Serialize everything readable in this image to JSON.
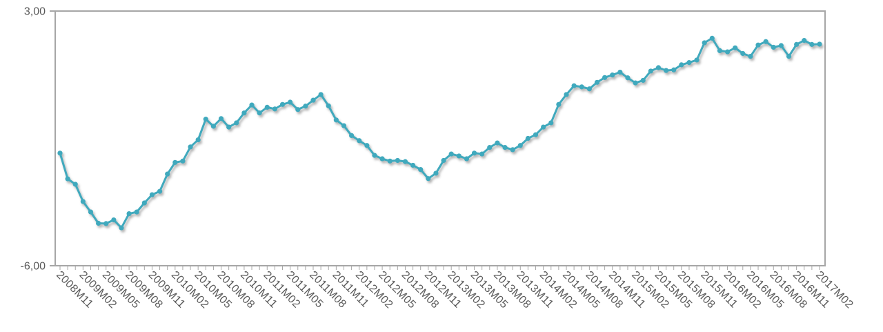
{
  "chart_data": {
    "type": "line",
    "title": "",
    "xlabel": "",
    "ylabel": "",
    "ylim": [
      -6,
      3
    ],
    "grid": "off",
    "legend": "none",
    "marker": "circle",
    "series_name": "monthly-trend",
    "colors": {
      "series": "#3FA9BD",
      "reference_line": "#404040",
      "axis": "#A6A6A6",
      "tick_text": "#595959",
      "background": "#FFFFFF",
      "shadow": "rgba(90,90,90,0.45)"
    },
    "y_ticks": [
      {
        "value": 3,
        "label": "3,00"
      },
      {
        "value": -6,
        "label": "-6,00"
      }
    ],
    "reference_line": {
      "value": 0
    },
    "x_tick_label_every": 3,
    "x_tick_labels": [
      "2008M11",
      "2009M02",
      "2009M05",
      "2009M08",
      "2009M11",
      "2010M02",
      "2010M05",
      "2010M08",
      "2010M11",
      "2011M02",
      "2011M05",
      "2011M08",
      "2011M11",
      "2012M02",
      "2012M05",
      "2012M08",
      "2012M11",
      "2013M02",
      "2013M05",
      "2013M08",
      "2013M11",
      "2014M02",
      "2014M05",
      "2014M08",
      "2014M11",
      "2015M02",
      "2015M05",
      "2015M08",
      "2015M11",
      "2016M02",
      "2016M05",
      "2016M08",
      "2016M11",
      "2017M02"
    ],
    "x": [
      "2008M11",
      "2008M12",
      "2009M01",
      "2009M02",
      "2009M03",
      "2009M04",
      "2009M05",
      "2009M06",
      "2009M07",
      "2009M08",
      "2009M09",
      "2009M10",
      "2009M11",
      "2009M12",
      "2010M01",
      "2010M02",
      "2010M03",
      "2010M04",
      "2010M05",
      "2010M06",
      "2010M07",
      "2010M08",
      "2010M09",
      "2010M10",
      "2010M11",
      "2010M12",
      "2011M01",
      "2011M02",
      "2011M03",
      "2011M04",
      "2011M05",
      "2011M06",
      "2011M07",
      "2011M08",
      "2011M09",
      "2011M10",
      "2011M11",
      "2011M12",
      "2012M01",
      "2012M02",
      "2012M03",
      "2012M04",
      "2012M05",
      "2012M06",
      "2012M07",
      "2012M08",
      "2012M09",
      "2012M10",
      "2012M11",
      "2012M12",
      "2013M01",
      "2013M02",
      "2013M03",
      "2013M04",
      "2013M05",
      "2013M06",
      "2013M07",
      "2013M08",
      "2013M09",
      "2013M10",
      "2013M11",
      "2013M12",
      "2014M01",
      "2014M02",
      "2014M03",
      "2014M04",
      "2014M05",
      "2014M06",
      "2014M07",
      "2014M08",
      "2014M09",
      "2014M10",
      "2014M11",
      "2014M12",
      "2015M01",
      "2015M02",
      "2015M03",
      "2015M04",
      "2015M05",
      "2015M06",
      "2015M07",
      "2015M08",
      "2015M09",
      "2015M10",
      "2015M11",
      "2015M12",
      "2016M01",
      "2016M02",
      "2016M03",
      "2016M04",
      "2016M05",
      "2016M06",
      "2016M07",
      "2016M08",
      "2016M09",
      "2016M10",
      "2016M11",
      "2016M12",
      "2017M01",
      "2017M02"
    ],
    "values": [
      -2.02,
      -2.93,
      -3.12,
      -3.73,
      -4.1,
      -4.5,
      -4.51,
      -4.38,
      -4.66,
      -4.16,
      -4.1,
      -3.78,
      -3.49,
      -3.37,
      -2.76,
      -2.35,
      -2.3,
      -1.8,
      -1.55,
      -0.82,
      -1.07,
      -0.8,
      -1.1,
      -0.95,
      -0.6,
      -0.32,
      -0.6,
      -0.4,
      -0.46,
      -0.3,
      -0.22,
      -0.48,
      -0.36,
      -0.15,
      0.05,
      -0.35,
      -0.85,
      -1.05,
      -1.4,
      -1.58,
      -1.75,
      -2.1,
      -2.22,
      -2.3,
      -2.28,
      -2.32,
      -2.45,
      -2.6,
      -2.92,
      -2.73,
      -2.28,
      -2.05,
      -2.12,
      -2.22,
      -2.02,
      -2.05,
      -1.82,
      -1.66,
      -1.82,
      -1.9,
      -1.75,
      -1.5,
      -1.37,
      -1.1,
      -0.95,
      -0.3,
      0.05,
      0.36,
      0.32,
      0.25,
      0.48,
      0.65,
      0.74,
      0.84,
      0.64,
      0.46,
      0.55,
      0.88,
      1.0,
      0.9,
      0.92,
      1.1,
      1.18,
      1.27,
      1.88,
      2.04,
      1.6,
      1.56,
      1.7,
      1.5,
      1.4,
      1.8,
      1.92,
      1.72,
      1.78,
      1.4,
      1.82,
      1.96,
      1.82,
      1.83
    ]
  }
}
